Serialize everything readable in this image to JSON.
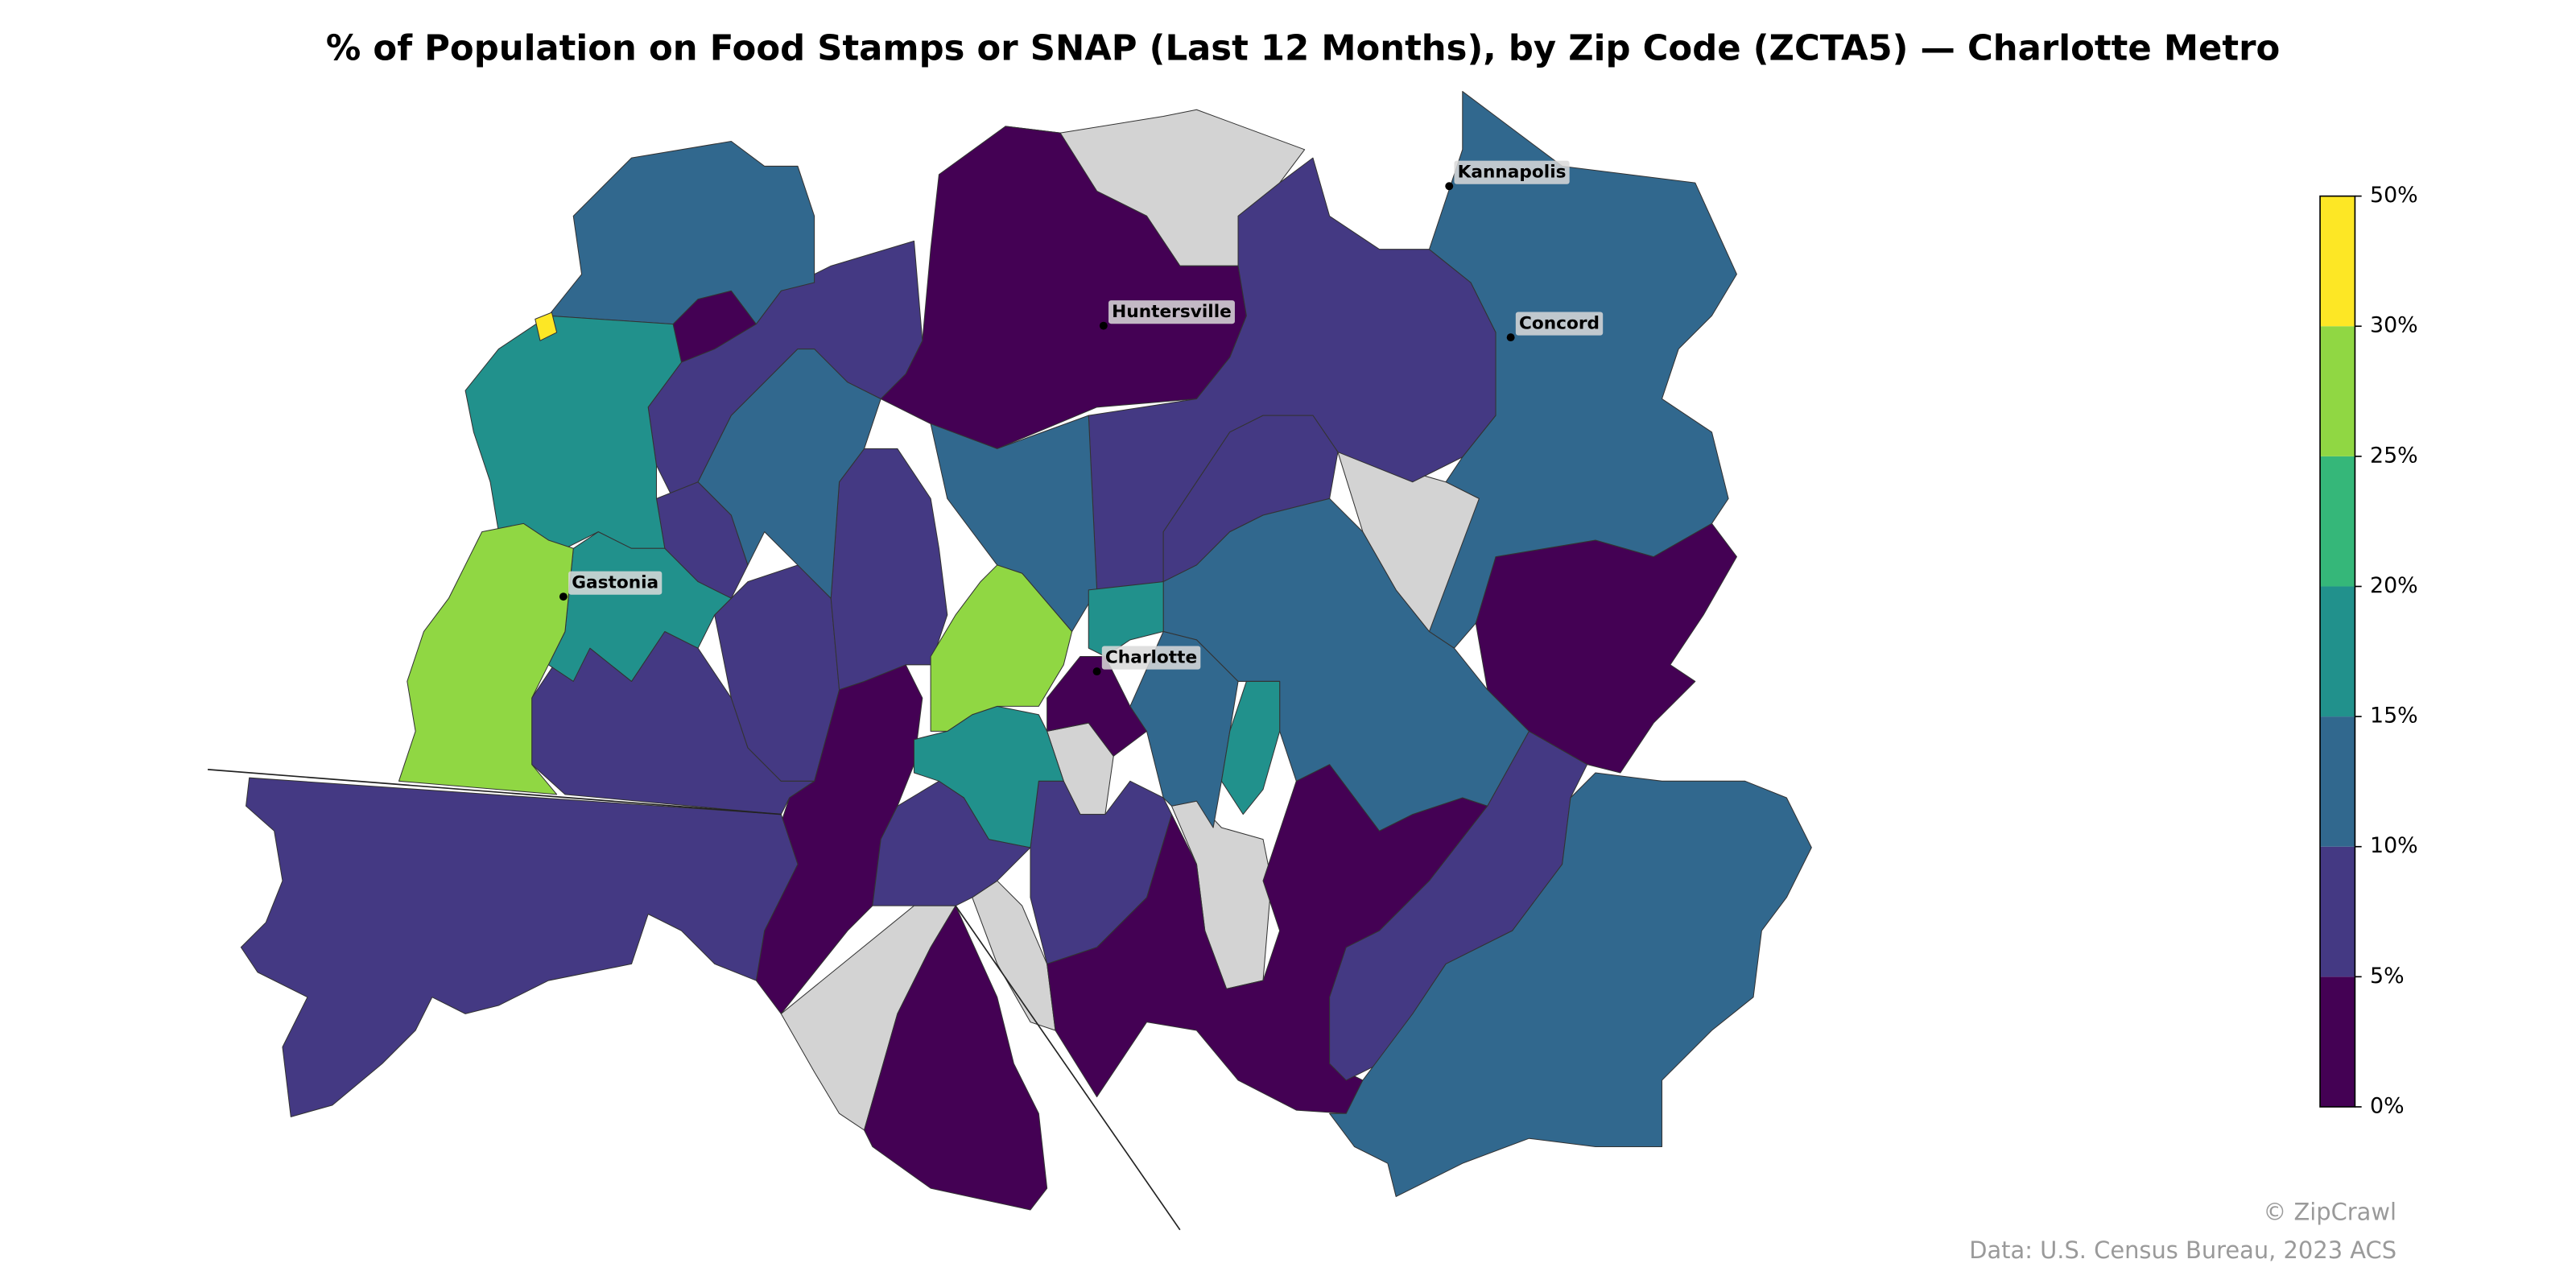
{
  "chart_data": {
    "type": "choropleth",
    "title": "% of Population on Food Stamps or SNAP (Last 12 Months), by Zip Code (ZCTA5) — Charlotte Metro",
    "colorbar": {
      "ticks": [
        {
          "value": 0,
          "label": "0%"
        },
        {
          "value": 5,
          "label": "5%"
        },
        {
          "value": 10,
          "label": "10%"
        },
        {
          "value": 15,
          "label": "15%"
        },
        {
          "value": 20,
          "label": "20%"
        },
        {
          "value": 25,
          "label": "25%"
        },
        {
          "value": 30,
          "label": "30%"
        },
        {
          "value": 50,
          "label": "50%"
        }
      ],
      "colors": [
        "#440154",
        "#443983",
        "#31688e",
        "#21918c",
        "#35b779",
        "#90d743",
        "#fde725"
      ]
    },
    "no_data_color": "#d3d3d3",
    "cities": [
      "Kannapolis",
      "Huntersville",
      "Concord",
      "Gastonia",
      "Charlotte"
    ],
    "credits": [
      "© ZipCrawl",
      "Data: U.S. Census Bureau, 2023 ACS"
    ]
  }
}
